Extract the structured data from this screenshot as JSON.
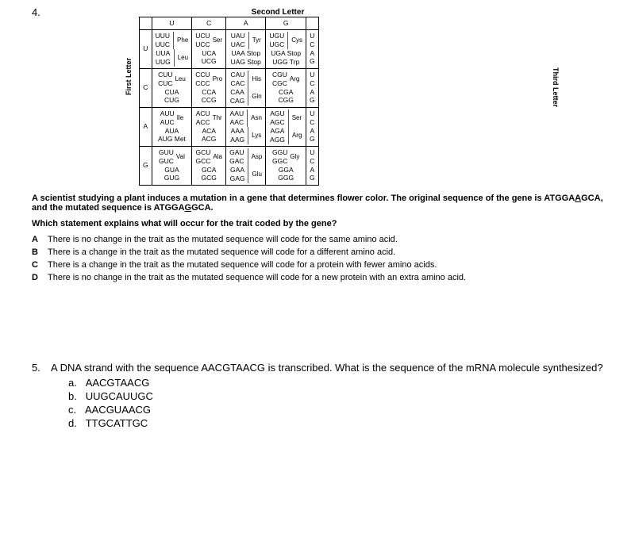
{
  "q4": {
    "number": "4.",
    "top_label": "Second Letter",
    "left_label": "First Letter",
    "right_label": "Third Letter",
    "cols": [
      "U",
      "C",
      "A",
      "G"
    ],
    "rows": [
      "U",
      "C",
      "A",
      "G"
    ],
    "third": [
      "U",
      "C",
      "A",
      "G"
    ],
    "cells": {
      "U": {
        "U": [
          [
            "UUU",
            "UUC",
            "Phe"
          ],
          [
            "UUA",
            "UUG",
            "Leu"
          ]
        ],
        "C": [
          [
            "UCU",
            "UCC",
            "Ser"
          ],
          [
            "UCA",
            "UCG",
            ""
          ]
        ],
        "A": [
          [
            "UAU",
            "UAC",
            "Tyr"
          ],
          [
            "UAA Stop",
            "UAG Stop",
            ""
          ]
        ],
        "G": [
          [
            "UGU",
            "UGC",
            "Cys"
          ],
          [
            "UGA Stop",
            "UGG Trp",
            ""
          ]
        ]
      },
      "C": {
        "U": [
          [
            "CUU",
            "CUC",
            "Leu"
          ],
          [
            "CUA",
            "CUG",
            ""
          ]
        ],
        "C": [
          [
            "CCU",
            "CCC",
            "Pro"
          ],
          [
            "CCA",
            "CCG",
            ""
          ]
        ],
        "A": [
          [
            "CAU",
            "CAC",
            "His"
          ],
          [
            "CAA",
            "CAG",
            "Gln"
          ]
        ],
        "G": [
          [
            "CGU",
            "CGC",
            "Arg"
          ],
          [
            "CGA",
            "CGG",
            ""
          ]
        ]
      },
      "A": {
        "U": [
          [
            "AUU",
            "AUC",
            "Ile"
          ],
          [
            "AUA",
            "AUG Met",
            ""
          ]
        ],
        "C": [
          [
            "ACU",
            "ACC",
            "Thr"
          ],
          [
            "ACA",
            "ACG",
            ""
          ]
        ],
        "A": [
          [
            "AAU",
            "AAC",
            "Asn"
          ],
          [
            "AAA",
            "AAG",
            "Lys"
          ]
        ],
        "G": [
          [
            "AGU",
            "AGC",
            "Ser"
          ],
          [
            "AGA",
            "AGG",
            "Arg"
          ]
        ]
      },
      "G": {
        "U": [
          [
            "GUU",
            "GUC",
            "Val"
          ],
          [
            "GUA",
            "GUG",
            ""
          ]
        ],
        "C": [
          [
            "GCU",
            "GCC",
            "Ala"
          ],
          [
            "GCA",
            "GCG",
            ""
          ]
        ],
        "A": [
          [
            "GAU",
            "GAC",
            "Asp"
          ],
          [
            "GAA",
            "GAG",
            "Glu"
          ]
        ],
        "G": [
          [
            "GGU",
            "GGC",
            "Gly"
          ],
          [
            "GGA",
            "GGG",
            ""
          ]
        ]
      }
    },
    "para1_a": "A scientist studying a plant induces a mutation in a gene that determines flower color. The original sequence of the gene is ",
    "seq1_pre": "ATGGA",
    "seq1_u": "A",
    "seq1_post": "GCA",
    "para1_b": ", and the mutated sequence is ",
    "seq2_pre": "ATGGA",
    "seq2_u": "G",
    "seq2_post": "GCA.",
    "para2": "Which statement explains what will occur for the trait coded by the gene?",
    "opts": {
      "A": "There is no change in the trait as the mutated sequence will code for the same amino acid.",
      "B": "There is a change in the trait as the mutated sequence will code for a different amino acid.",
      "C": "There is a change in the trait as the mutated sequence will code for a protein with fewer amino acids.",
      "D": "There is no change in the trait as the mutated sequence will code for a new protein with an extra amino acid."
    },
    "opt_letters": {
      "A": "A",
      "B": "B",
      "C": "C",
      "D": "D"
    }
  },
  "q5": {
    "number": "5.",
    "text": "A DNA strand with the sequence AACGTAACG is transcribed. What is the sequence of the mRNA molecule synthesized?",
    "opts": {
      "a": "AACGTAACG",
      "b": "UUGCAUUGC",
      "c": "AACGUAACG",
      "d": "TTGCATTGC"
    },
    "labels": {
      "a": "a.",
      "b": "b.",
      "c": "c.",
      "d": "d."
    }
  }
}
